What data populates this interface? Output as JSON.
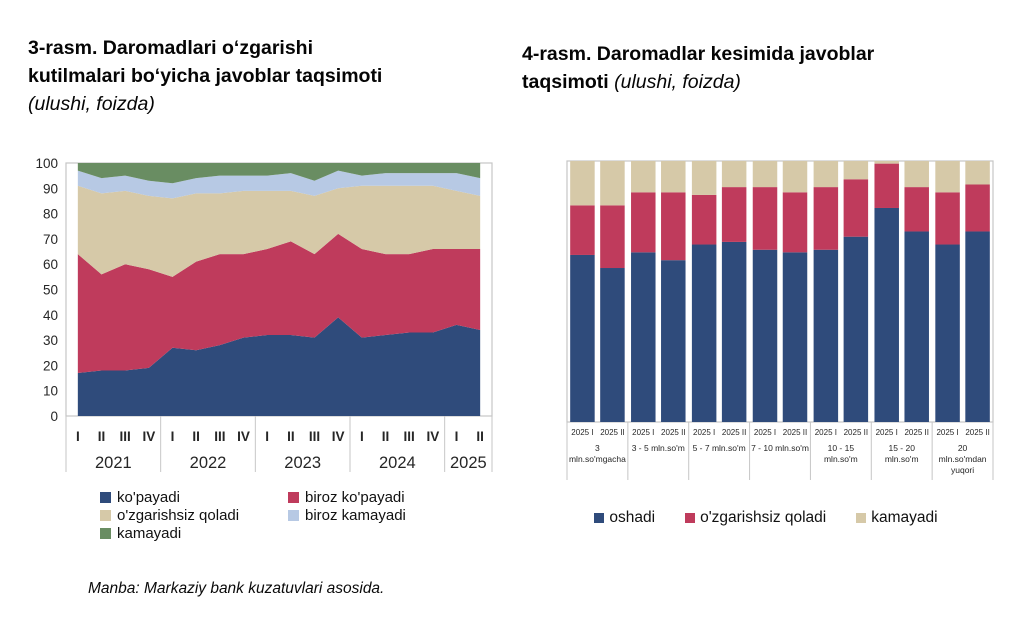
{
  "left_panel": {
    "title_lines": [
      "3-rasm. Daromadlari oʻzgarishi",
      "kutilmalari boʻyicha javoblar taqsimoti"
    ],
    "subtitle": "(ulushi, foizda)"
  },
  "right_panel": {
    "title_line1": "4-rasm. Daromadlar kesimida javoblar",
    "title_line2_bold": "taqsimoti",
    "title_line2_italic": "(ulushi, foizda)"
  },
  "source_note": "Manba: Markaziy bank kuzatuvlari asosida.",
  "palette": {
    "dark_blue": "#2F4B7B",
    "red": "#BF3B5C",
    "tan": "#D6C9A8",
    "light_blue": "#B7C9E4",
    "green": "#698D62",
    "plot_border": "#c6c6c6"
  },
  "chart_data": [
    {
      "type": "area",
      "stacked_percent": true,
      "title": "3-rasm. Daromadlari oʻzgarishi kutilmalari boʻyicha javoblar taqsimoti",
      "subtitle": "(ulushi, foizda)",
      "ylim": [
        0,
        100
      ],
      "yticks": [
        0,
        10,
        20,
        30,
        40,
        50,
        60,
        70,
        80,
        90,
        100
      ],
      "grid": false,
      "legend_position": "bottom-left-two-columns",
      "quarters": [
        "I",
        "II",
        "III",
        "IV",
        "I",
        "II",
        "III",
        "IV",
        "I",
        "II",
        "III",
        "IV",
        "I",
        "II",
        "III",
        "IV",
        "I",
        "II"
      ],
      "year_groups": [
        {
          "label": "2021",
          "count": 4
        },
        {
          "label": "2022",
          "count": 4
        },
        {
          "label": "2023",
          "count": 4
        },
        {
          "label": "2024",
          "count": 4
        },
        {
          "label": "2025",
          "count": 2
        }
      ],
      "series": [
        {
          "name": "ko'payadi",
          "color": "#2F4B7B",
          "values": [
            17,
            18,
            18,
            19,
            27,
            26,
            28,
            31,
            32,
            32,
            31,
            39,
            31,
            32,
            33,
            33,
            36,
            34
          ]
        },
        {
          "name": "biroz ko'payadi",
          "color": "#BF3B5C",
          "values": [
            47,
            38,
            42,
            39,
            28,
            35,
            36,
            33,
            34,
            37,
            33,
            33,
            35,
            32,
            31,
            33,
            30,
            32
          ]
        },
        {
          "name": "o'zgarishsiz qoladi",
          "color": "#D6C9A8",
          "values": [
            27,
            32,
            29,
            29,
            31,
            27,
            24,
            25,
            23,
            20,
            23,
            18,
            25,
            27,
            27,
            25,
            23,
            21
          ]
        },
        {
          "name": "biroz kamayadi",
          "color": "#B7C9E4",
          "values": [
            6,
            6,
            6,
            6,
            6,
            6,
            7,
            6,
            6,
            7,
            6,
            7,
            4,
            5,
            5,
            5,
            7,
            7
          ]
        },
        {
          "name": "kamayadi",
          "color": "#698D62",
          "values": [
            3,
            6,
            5,
            7,
            8,
            6,
            5,
            5,
            5,
            4,
            7,
            3,
            5,
            4,
            4,
            4,
            4,
            6
          ]
        }
      ]
    },
    {
      "type": "bar",
      "stacked_percent": true,
      "title": "4-rasm. Daromadlar kesimida javoblar taqsimoti",
      "subtitle": "(ulushi, foizda)",
      "ylim": [
        0,
        100
      ],
      "yticks": [
        0,
        10,
        20,
        30,
        40,
        50,
        60,
        70,
        80,
        90,
        100
      ],
      "grid": false,
      "legend_position": "bottom-center-row",
      "bar_labels": [
        "2025 I",
        "2025 II"
      ],
      "groups": [
        {
          "label_lines": [
            "3",
            "mln.so'mgacha"
          ]
        },
        {
          "label_lines": [
            "3 - 5 mln.so'm"
          ]
        },
        {
          "label_lines": [
            "5 - 7 mln.so'm"
          ]
        },
        {
          "label_lines": [
            "7 - 10 mln.so'm"
          ]
        },
        {
          "label_lines": [
            "10 - 15",
            "mln.so'm"
          ]
        },
        {
          "label_lines": [
            "15 - 20",
            "mln.so'm"
          ]
        },
        {
          "label_lines": [
            "20",
            "mln.so'mdan",
            "yuqori"
          ]
        }
      ],
      "series": [
        {
          "name": "oshadi",
          "color": "#2F4B7B",
          "values": [
            64,
            59,
            65,
            62,
            68,
            69,
            66,
            65,
            66,
            71,
            82,
            73,
            68,
            73
          ]
        },
        {
          "name": "o'zgarishsiz qoladi",
          "color": "#BF3B5C",
          "values": [
            19,
            24,
            23,
            26,
            19,
            21,
            24,
            23,
            24,
            22,
            17,
            17,
            20,
            18
          ]
        },
        {
          "name": "kamayadi",
          "color": "#D6C9A8",
          "values": [
            17,
            17,
            12,
            12,
            13,
            10,
            10,
            12,
            10,
            7,
            1,
            10,
            12,
            9
          ]
        }
      ]
    }
  ]
}
